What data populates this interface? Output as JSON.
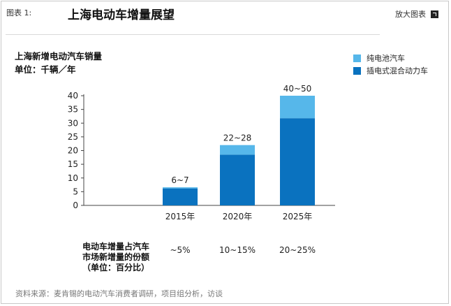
{
  "header": {
    "figure_label": "图表 1:",
    "title": "上海电动车增量展望",
    "enlarge_label": "放大图表"
  },
  "chart_data": {
    "type": "bar",
    "stacked": true,
    "title": "上海新增电动汽车销量",
    "unit": "单位：千辆／年",
    "categories": [
      "2015年",
      "2020年",
      "2025年"
    ],
    "series": [
      {
        "name": "插电式混合动力车",
        "color": "#0a72bf",
        "values": [
          6.2,
          18.5,
          31.8
        ]
      },
      {
        "name": "纯电池汽车",
        "color": "#56b7ea",
        "values": [
          0.4,
          3.5,
          8.2
        ]
      }
    ],
    "totals_labels": [
      "6~7",
      "22~28",
      "40~50"
    ],
    "y_ticks": [
      0,
      5,
      10,
      15,
      20,
      25,
      30,
      35,
      40
    ],
    "ylim": [
      0,
      40
    ],
    "legend_position": "top-right",
    "share_row": {
      "label": [
        "电动车增量占汽车",
        "市场新增量的份额",
        "（单位：百分比）"
      ],
      "values": [
        "~5%",
        "10~15%",
        "20~25%"
      ]
    }
  },
  "footer": {
    "source": "资料来源：麦肯锡的电动汽车消费者调研，项目组分析，访谈"
  }
}
